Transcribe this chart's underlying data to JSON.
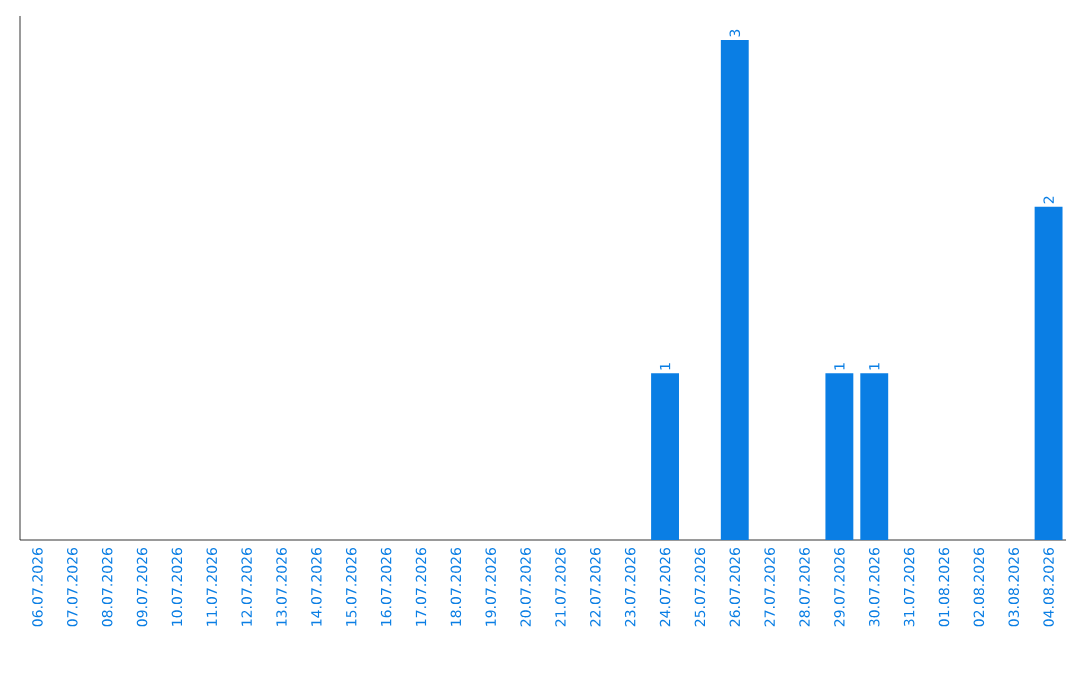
{
  "chart_data": {
    "type": "bar",
    "categories": [
      "06.07.2026",
      "07.07.2026",
      "08.07.2026",
      "09.07.2026",
      "10.07.2026",
      "11.07.2026",
      "12.07.2026",
      "13.07.2026",
      "14.07.2026",
      "15.07.2026",
      "16.07.2026",
      "17.07.2026",
      "18.07.2026",
      "19.07.2026",
      "20.07.2026",
      "21.07.2026",
      "22.07.2026",
      "23.07.2026",
      "24.07.2026",
      "25.07.2026",
      "26.07.2026",
      "27.07.2026",
      "28.07.2026",
      "29.07.2026",
      "30.07.2026",
      "31.07.2026",
      "01.08.2026",
      "02.08.2026",
      "03.08.2026",
      "04.08.2026"
    ],
    "values": [
      null,
      null,
      null,
      null,
      null,
      null,
      null,
      null,
      null,
      null,
      null,
      null,
      null,
      null,
      null,
      null,
      null,
      null,
      1,
      null,
      3,
      null,
      null,
      1,
      1,
      null,
      null,
      null,
      null,
      2
    ],
    "data_labels": true,
    "color": "#0a7ee4"
  }
}
